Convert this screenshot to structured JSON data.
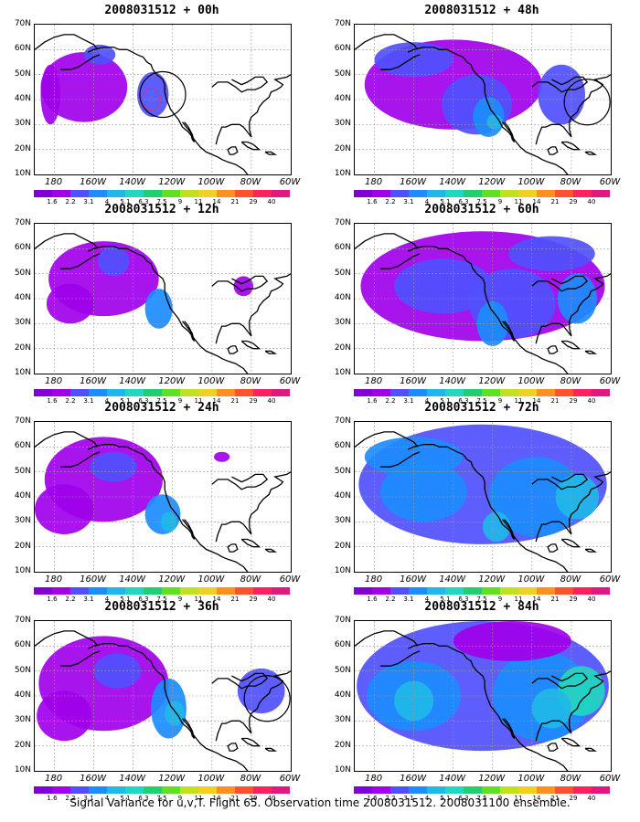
{
  "footer": "Signal Variance for u,v,T. Flight 65. Observation time 2008031512. 2008031100 ensemble.",
  "y_ticks": [
    "70N",
    "60N",
    "50N",
    "40N",
    "30N",
    "20N",
    "10N"
  ],
  "x_ticks": [
    "180",
    "160W",
    "140W",
    "120W",
    "100W",
    "80W",
    "60W"
  ],
  "colorbar": {
    "labels": [
      "1.6",
      "2.2",
      "3.1",
      "4",
      "5.1",
      "6.3",
      "7.5",
      "9",
      "11",
      "14",
      "21",
      "29",
      "40"
    ],
    "colors": [
      "#8000d8",
      "#a000ea",
      "#5050ff",
      "#1c8cff",
      "#1fb8e8",
      "#20d8c0",
      "#20d070",
      "#60e020",
      "#c0e020",
      "#f0d020",
      "#ff9020",
      "#ff5030",
      "#ff2060",
      "#e01880"
    ]
  },
  "coastline_color": "#000000",
  "panels": [
    {
      "title": "2008031512 + 00h",
      "circle": true,
      "footprint": true
    },
    {
      "title": "2008031512 + 12h",
      "circle": false,
      "footprint": false
    },
    {
      "title": "2008031512 + 24h",
      "circle": false,
      "footprint": false
    },
    {
      "title": "2008031512 + 36h",
      "circle": true,
      "footprint": false
    },
    {
      "title": "2008031512 + 48h",
      "circle": true,
      "footprint": false
    },
    {
      "title": "2008031512 + 60h",
      "circle": false,
      "footprint": false
    },
    {
      "title": "2008031512 + 72h",
      "circle": false,
      "footprint": false
    },
    {
      "title": "2008031512 + 84h",
      "circle": false,
      "footprint": false
    }
  ]
}
